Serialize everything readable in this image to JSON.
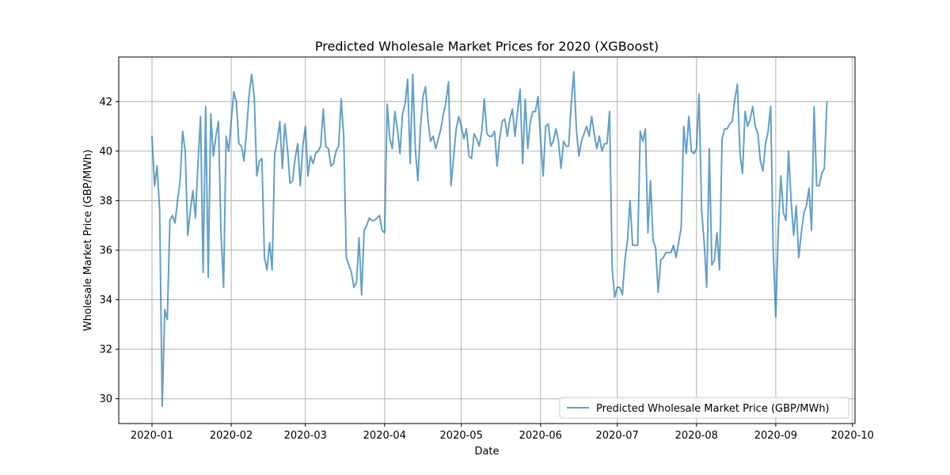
{
  "chart_data": {
    "type": "line",
    "title": "Predicted Wholesale Market Prices for 2020 (XGBoost)",
    "xlabel": "Date",
    "ylabel": "Wholesale Market Price (GBP/MWh)",
    "xlim": [
      "2019-12-19",
      "2020-10-02"
    ],
    "ylim": [
      29.0,
      43.8
    ],
    "x_ticks": [
      "2020-01-01",
      "2020-02-01",
      "2020-03-01",
      "2020-04-01",
      "2020-05-01",
      "2020-06-01",
      "2020-07-01",
      "2020-08-01",
      "2020-09-01",
      "2020-10-01"
    ],
    "x_tick_labels": [
      "2020-01",
      "2020-02",
      "2020-03",
      "2020-04",
      "2020-05",
      "2020-06",
      "2020-07",
      "2020-08",
      "2020-09",
      "2020-10"
    ],
    "y_ticks": [
      30,
      32,
      34,
      36,
      38,
      40,
      42
    ],
    "y_tick_labels": [
      "30",
      "32",
      "34",
      "36",
      "38",
      "40",
      "42"
    ],
    "grid": true,
    "legend_position": "lower-right",
    "colors": {
      "line": "#1f77b4"
    },
    "series": [
      {
        "name": "Predicted Wholesale Market Price (GBP/MWh)",
        "points": [
          [
            "2020-01-01",
            40.6
          ],
          [
            "2020-01-02",
            38.6
          ],
          [
            "2020-01-03",
            39.4
          ],
          [
            "2020-01-04",
            37.6
          ],
          [
            "2020-01-05",
            29.7
          ],
          [
            "2020-01-06",
            33.6
          ],
          [
            "2020-01-07",
            33.2
          ],
          [
            "2020-01-08",
            37.2
          ],
          [
            "2020-01-09",
            37.4
          ],
          [
            "2020-01-10",
            37.1
          ],
          [
            "2020-01-11",
            38.0
          ],
          [
            "2020-01-12",
            38.8
          ],
          [
            "2020-01-13",
            40.8
          ],
          [
            "2020-01-14",
            40.0
          ],
          [
            "2020-01-15",
            36.6
          ],
          [
            "2020-01-16",
            37.6
          ],
          [
            "2020-01-17",
            38.4
          ],
          [
            "2020-01-18",
            37.3
          ],
          [
            "2020-01-19",
            39.5
          ],
          [
            "2020-01-20",
            41.4
          ],
          [
            "2020-01-21",
            35.1
          ],
          [
            "2020-01-22",
            41.8
          ],
          [
            "2020-01-23",
            34.9
          ],
          [
            "2020-01-24",
            41.5
          ],
          [
            "2020-01-25",
            39.8
          ],
          [
            "2020-01-26",
            40.6
          ],
          [
            "2020-01-27",
            41.2
          ],
          [
            "2020-01-28",
            36.7
          ],
          [
            "2020-01-29",
            34.5
          ],
          [
            "2020-01-30",
            40.6
          ],
          [
            "2020-01-31",
            40.0
          ],
          [
            "2020-02-01",
            41.2
          ],
          [
            "2020-02-02",
            42.4
          ],
          [
            "2020-02-03",
            42.0
          ],
          [
            "2020-02-04",
            40.3
          ],
          [
            "2020-02-05",
            40.2
          ],
          [
            "2020-02-06",
            39.6
          ],
          [
            "2020-02-07",
            40.8
          ],
          [
            "2020-02-08",
            42.3
          ],
          [
            "2020-02-09",
            43.1
          ],
          [
            "2020-02-10",
            42.2
          ],
          [
            "2020-02-11",
            39.0
          ],
          [
            "2020-02-12",
            39.6
          ],
          [
            "2020-02-13",
            39.7
          ],
          [
            "2020-02-14",
            35.7
          ],
          [
            "2020-02-15",
            35.2
          ],
          [
            "2020-02-16",
            36.3
          ],
          [
            "2020-02-17",
            35.2
          ],
          [
            "2020-02-18",
            39.9
          ],
          [
            "2020-02-19",
            40.4
          ],
          [
            "2020-02-20",
            41.2
          ],
          [
            "2020-02-21",
            39.3
          ],
          [
            "2020-02-22",
            41.1
          ],
          [
            "2020-02-23",
            40.1
          ],
          [
            "2020-02-24",
            38.7
          ],
          [
            "2020-02-25",
            38.8
          ],
          [
            "2020-02-26",
            39.7
          ],
          [
            "2020-02-27",
            40.3
          ],
          [
            "2020-02-28",
            38.6
          ],
          [
            "2020-02-29",
            40.2
          ],
          [
            "2020-03-01",
            41.0
          ],
          [
            "2020-03-02",
            39.0
          ],
          [
            "2020-03-03",
            39.8
          ],
          [
            "2020-03-04",
            39.5
          ],
          [
            "2020-03-05",
            39.9
          ],
          [
            "2020-03-06",
            40.0
          ],
          [
            "2020-03-07",
            40.2
          ],
          [
            "2020-03-08",
            41.7
          ],
          [
            "2020-03-09",
            40.2
          ],
          [
            "2020-03-10",
            40.1
          ],
          [
            "2020-03-11",
            39.4
          ],
          [
            "2020-03-12",
            39.5
          ],
          [
            "2020-03-13",
            40.0
          ],
          [
            "2020-03-14",
            40.2
          ],
          [
            "2020-03-15",
            42.1
          ],
          [
            "2020-03-16",
            40.6
          ],
          [
            "2020-03-17",
            35.7
          ],
          [
            "2020-03-18",
            35.4
          ],
          [
            "2020-03-19",
            35.1
          ],
          [
            "2020-03-20",
            34.5
          ],
          [
            "2020-03-21",
            34.7
          ],
          [
            "2020-03-22",
            36.5
          ],
          [
            "2020-03-23",
            34.2
          ],
          [
            "2020-03-24",
            36.8
          ],
          [
            "2020-03-25",
            37.0
          ],
          [
            "2020-03-26",
            37.3
          ],
          [
            "2020-03-27",
            37.2
          ],
          [
            "2020-03-28",
            37.2
          ],
          [
            "2020-03-29",
            37.3
          ],
          [
            "2020-03-30",
            37.4
          ],
          [
            "2020-03-31",
            36.8
          ],
          [
            "2020-04-01",
            36.7
          ],
          [
            "2020-04-02",
            41.9
          ],
          [
            "2020-04-03",
            40.5
          ],
          [
            "2020-04-04",
            40.1
          ],
          [
            "2020-04-05",
            41.6
          ],
          [
            "2020-04-06",
            40.9
          ],
          [
            "2020-04-07",
            39.9
          ],
          [
            "2020-04-08",
            41.5
          ],
          [
            "2020-04-09",
            41.9
          ],
          [
            "2020-04-10",
            42.9
          ],
          [
            "2020-04-11",
            39.5
          ],
          [
            "2020-04-12",
            43.1
          ],
          [
            "2020-04-13",
            40.1
          ],
          [
            "2020-04-14",
            38.8
          ],
          [
            "2020-04-15",
            40.9
          ],
          [
            "2020-04-16",
            42.2
          ],
          [
            "2020-04-17",
            42.6
          ],
          [
            "2020-04-18",
            41.2
          ],
          [
            "2020-04-19",
            40.4
          ],
          [
            "2020-04-20",
            40.6
          ],
          [
            "2020-04-21",
            40.1
          ],
          [
            "2020-04-22",
            40.5
          ],
          [
            "2020-04-23",
            40.9
          ],
          [
            "2020-04-24",
            41.5
          ],
          [
            "2020-04-25",
            42.0
          ],
          [
            "2020-04-26",
            42.8
          ],
          [
            "2020-04-27",
            38.6
          ],
          [
            "2020-04-28",
            39.8
          ],
          [
            "2020-04-29",
            40.9
          ],
          [
            "2020-04-30",
            41.4
          ],
          [
            "2020-05-01",
            41.0
          ],
          [
            "2020-05-02",
            40.5
          ],
          [
            "2020-05-03",
            40.9
          ],
          [
            "2020-05-04",
            39.8
          ],
          [
            "2020-05-05",
            39.7
          ],
          [
            "2020-05-06",
            40.7
          ],
          [
            "2020-05-07",
            40.5
          ],
          [
            "2020-05-08",
            40.2
          ],
          [
            "2020-05-09",
            40.8
          ],
          [
            "2020-05-10",
            42.1
          ],
          [
            "2020-05-11",
            40.7
          ],
          [
            "2020-05-12",
            40.6
          ],
          [
            "2020-05-13",
            40.6
          ],
          [
            "2020-05-14",
            40.8
          ],
          [
            "2020-05-15",
            39.4
          ],
          [
            "2020-05-16",
            40.5
          ],
          [
            "2020-05-17",
            41.2
          ],
          [
            "2020-05-18",
            41.3
          ],
          [
            "2020-05-19",
            40.6
          ],
          [
            "2020-05-20",
            41.3
          ],
          [
            "2020-05-21",
            41.7
          ],
          [
            "2020-05-22",
            40.6
          ],
          [
            "2020-05-23",
            41.6
          ],
          [
            "2020-05-24",
            42.5
          ],
          [
            "2020-05-25",
            39.5
          ],
          [
            "2020-05-26",
            42.1
          ],
          [
            "2020-05-27",
            40.1
          ],
          [
            "2020-05-28",
            41.2
          ],
          [
            "2020-05-29",
            41.6
          ],
          [
            "2020-05-30",
            41.6
          ],
          [
            "2020-05-31",
            42.2
          ],
          [
            "2020-06-01",
            40.5
          ],
          [
            "2020-06-02",
            39.0
          ],
          [
            "2020-06-03",
            41.0
          ],
          [
            "2020-06-04",
            41.1
          ],
          [
            "2020-06-05",
            40.2
          ],
          [
            "2020-06-06",
            40.4
          ],
          [
            "2020-06-07",
            40.9
          ],
          [
            "2020-06-08",
            40.4
          ],
          [
            "2020-06-09",
            39.3
          ],
          [
            "2020-06-10",
            40.4
          ],
          [
            "2020-06-11",
            40.2
          ],
          [
            "2020-06-12",
            40.2
          ],
          [
            "2020-06-13",
            41.9
          ],
          [
            "2020-06-14",
            43.2
          ],
          [
            "2020-06-15",
            40.9
          ],
          [
            "2020-06-16",
            39.8
          ],
          [
            "2020-06-17",
            40.4
          ],
          [
            "2020-06-18",
            40.7
          ],
          [
            "2020-06-19",
            41.0
          ],
          [
            "2020-06-20",
            40.6
          ],
          [
            "2020-06-21",
            41.4
          ],
          [
            "2020-06-22",
            40.7
          ],
          [
            "2020-06-23",
            40.1
          ],
          [
            "2020-06-24",
            40.6
          ],
          [
            "2020-06-25",
            40.0
          ],
          [
            "2020-06-26",
            40.3
          ],
          [
            "2020-06-27",
            40.3
          ],
          [
            "2020-06-28",
            41.6
          ],
          [
            "2020-06-29",
            35.3
          ],
          [
            "2020-06-30",
            34.1
          ],
          [
            "2020-07-01",
            34.5
          ],
          [
            "2020-07-02",
            34.5
          ],
          [
            "2020-07-03",
            34.2
          ],
          [
            "2020-07-04",
            35.6
          ],
          [
            "2020-07-05",
            36.4
          ],
          [
            "2020-07-06",
            38.0
          ],
          [
            "2020-07-07",
            36.2
          ],
          [
            "2020-07-08",
            36.2
          ],
          [
            "2020-07-09",
            36.2
          ],
          [
            "2020-07-10",
            40.8
          ],
          [
            "2020-07-11",
            40.4
          ],
          [
            "2020-07-12",
            40.9
          ],
          [
            "2020-07-13",
            36.7
          ],
          [
            "2020-07-14",
            38.8
          ],
          [
            "2020-07-15",
            36.4
          ],
          [
            "2020-07-16",
            36.1
          ],
          [
            "2020-07-17",
            34.3
          ],
          [
            "2020-07-18",
            35.6
          ],
          [
            "2020-07-19",
            35.7
          ],
          [
            "2020-07-20",
            35.9
          ],
          [
            "2020-07-21",
            35.9
          ],
          [
            "2020-07-22",
            35.9
          ],
          [
            "2020-07-23",
            36.2
          ],
          [
            "2020-07-24",
            35.7
          ],
          [
            "2020-07-25",
            36.3
          ],
          [
            "2020-07-26",
            36.9
          ],
          [
            "2020-07-27",
            41.0
          ],
          [
            "2020-07-28",
            39.9
          ],
          [
            "2020-07-29",
            41.4
          ],
          [
            "2020-07-30",
            40.0
          ],
          [
            "2020-07-31",
            39.9
          ],
          [
            "2020-08-01",
            40.1
          ],
          [
            "2020-08-02",
            42.3
          ],
          [
            "2020-08-03",
            37.6
          ],
          [
            "2020-08-04",
            36.3
          ],
          [
            "2020-08-05",
            34.5
          ],
          [
            "2020-08-06",
            40.1
          ],
          [
            "2020-08-07",
            35.4
          ],
          [
            "2020-08-08",
            35.6
          ],
          [
            "2020-08-09",
            36.7
          ],
          [
            "2020-08-10",
            35.2
          ],
          [
            "2020-08-11",
            40.5
          ],
          [
            "2020-08-12",
            40.9
          ],
          [
            "2020-08-13",
            40.9
          ],
          [
            "2020-08-14",
            41.1
          ],
          [
            "2020-08-15",
            41.2
          ],
          [
            "2020-08-16",
            42.1
          ],
          [
            "2020-08-17",
            42.7
          ],
          [
            "2020-08-18",
            39.9
          ],
          [
            "2020-08-19",
            39.1
          ],
          [
            "2020-08-20",
            41.6
          ],
          [
            "2020-08-21",
            41.0
          ],
          [
            "2020-08-22",
            41.3
          ],
          [
            "2020-08-23",
            41.8
          ],
          [
            "2020-08-24",
            41.0
          ],
          [
            "2020-08-25",
            40.7
          ],
          [
            "2020-08-26",
            39.6
          ],
          [
            "2020-08-27",
            39.2
          ],
          [
            "2020-08-28",
            40.3
          ],
          [
            "2020-08-29",
            40.8
          ],
          [
            "2020-08-30",
            41.8
          ],
          [
            "2020-08-31",
            36.0
          ],
          [
            "2020-09-01",
            33.3
          ],
          [
            "2020-09-02",
            36.9
          ],
          [
            "2020-09-03",
            39.0
          ],
          [
            "2020-09-04",
            37.5
          ],
          [
            "2020-09-05",
            37.2
          ],
          [
            "2020-09-06",
            40.0
          ],
          [
            "2020-09-07",
            38.0
          ],
          [
            "2020-09-08",
            36.6
          ],
          [
            "2020-09-09",
            37.8
          ],
          [
            "2020-09-10",
            35.7
          ],
          [
            "2020-09-11",
            36.7
          ],
          [
            "2020-09-12",
            37.5
          ],
          [
            "2020-09-13",
            37.8
          ],
          [
            "2020-09-14",
            38.5
          ],
          [
            "2020-09-15",
            36.8
          ],
          [
            "2020-09-16",
            41.8
          ],
          [
            "2020-09-17",
            38.6
          ],
          [
            "2020-09-18",
            38.6
          ],
          [
            "2020-09-19",
            39.1
          ],
          [
            "2020-09-20",
            39.3
          ],
          [
            "2020-09-21",
            42.0
          ]
        ]
      }
    ]
  }
}
